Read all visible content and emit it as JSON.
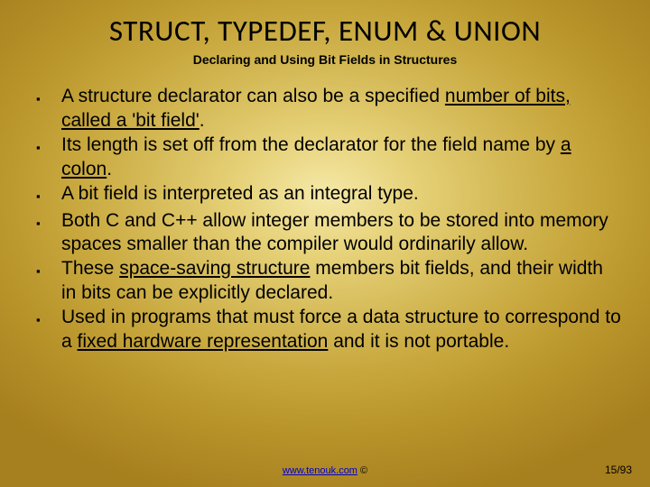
{
  "title": "STRUCT, TYPEDEF, ENUM & UNION",
  "subtitle": "Declaring and Using Bit Fields in Structures",
  "bullets": [
    {
      "pre": "A structure declarator can also be a specified ",
      "u": "number of bits, called a 'bit field'",
      "post": "."
    },
    {
      "pre": "Its length is set off from the declarator for the field name by ",
      "u": "a colon",
      "post": "."
    },
    {
      "pre": "A bit field is interpreted as an integral type.",
      "u": "",
      "post": ""
    },
    {
      "pre": "Both C and C++ allow integer members to be stored into memory spaces smaller than the compiler would ordinarily allow.",
      "u": "",
      "post": ""
    },
    {
      "pre": "These ",
      "u": "space-saving structure",
      "post": " members bit fields, and their width in bits can be explicitly declared."
    },
    {
      "pre": "Used in programs that must force a data structure to correspond to a ",
      "u": "fixed hardware representation",
      "post": " and it is not portable."
    }
  ],
  "footer_link": "www.tenouk.com",
  "footer_symbol": " ©",
  "page": "15/93",
  "colors": {
    "text": "#000000",
    "link": "#0000cc"
  }
}
